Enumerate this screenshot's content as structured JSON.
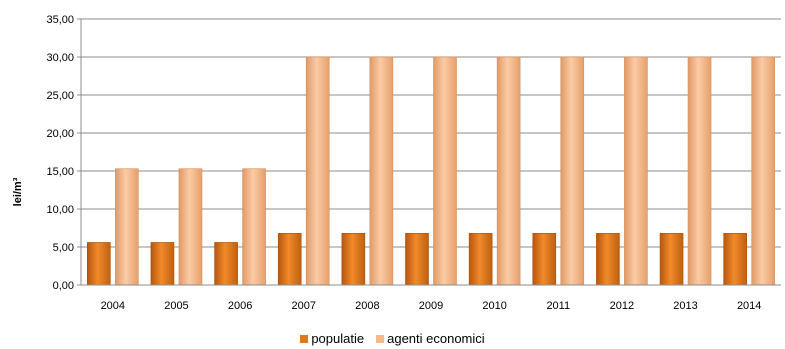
{
  "chart_data": {
    "type": "bar",
    "title": "",
    "xlabel": "",
    "ylabel": "lei/m³",
    "ylim": [
      0,
      35
    ],
    "yticks": [
      "0,00",
      "5,00",
      "10,00",
      "15,00",
      "20,00",
      "25,00",
      "30,00",
      "35,00"
    ],
    "grid": true,
    "legend_position": "bottom",
    "categories": [
      "2004",
      "2005",
      "2006",
      "2007",
      "2008",
      "2009",
      "2010",
      "2011",
      "2012",
      "2013",
      "2014"
    ],
    "series": [
      {
        "name": "populatie",
        "color": "#E07820",
        "values": [
          5.6,
          5.6,
          5.6,
          6.8,
          6.8,
          6.8,
          6.8,
          6.8,
          6.8,
          6.8,
          6.8
        ]
      },
      {
        "name": "agenti economici",
        "color": "#F5B98A",
        "values": [
          15.3,
          15.3,
          15.3,
          30.0,
          30.0,
          30.0,
          30.0,
          30.0,
          30.0,
          30.0,
          30.0
        ]
      }
    ]
  }
}
